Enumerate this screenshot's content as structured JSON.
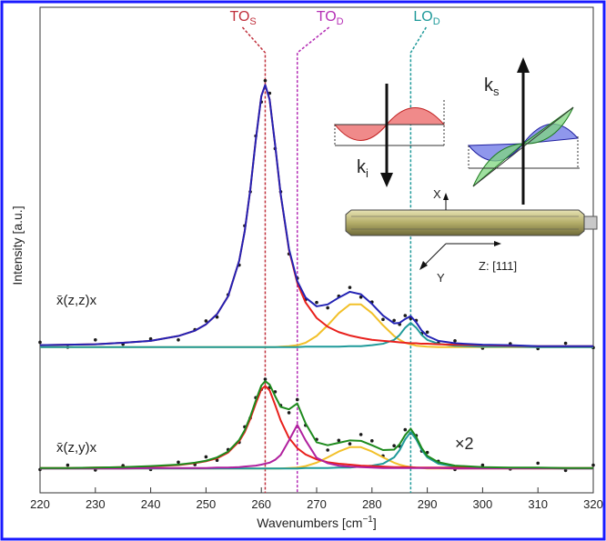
{
  "chart_data": {
    "type": "line",
    "x": [
      220,
      225,
      230,
      235,
      240,
      245,
      248,
      250,
      252,
      254,
      256,
      257,
      258,
      259,
      260,
      260.7,
      261.5,
      262.5,
      263.5,
      265,
      266.5,
      268,
      270,
      272,
      274,
      276,
      278,
      280,
      282,
      284,
      285,
      286,
      287,
      288,
      289,
      290,
      292,
      295,
      300,
      305,
      310,
      315,
      320
    ],
    "xlim": [
      220,
      320
    ],
    "xticks": [
      220,
      230,
      240,
      250,
      260,
      270,
      280,
      290,
      300,
      310,
      320
    ],
    "ylim": [
      0,
      100
    ],
    "xlabel": {
      "text": "Wavenumbers [cm",
      "sup": "−1",
      "end": "]"
    },
    "ylabel": "Intensity [a.u.]",
    "series": [
      {
        "style": "dots",
        "color": "#1a1a1a",
        "values": [
          31.0,
          30.0,
          31.5,
          30.6,
          31.7,
          31.5,
          33.6,
          35.4,
          36.2,
          40.8,
          46.9,
          55.0,
          62.0,
          73.5,
          80.5,
          84.9,
          82.3,
          70.9,
          62.0,
          49.2,
          44.2,
          39.8,
          39.2,
          38.1,
          40.5,
          42.3,
          40.3,
          39.3,
          35.7,
          35.5,
          34.7,
          36.5,
          35.9,
          35.5,
          32.8,
          33.1,
          30.9,
          31.3,
          29.8,
          30.7,
          29.7,
          30.8,
          29.9
        ]
      },
      {
        "style": "dots",
        "color": "#1a1a1a",
        "values": [
          4.8,
          5.7,
          4.7,
          5.6,
          4.8,
          6.3,
          5.8,
          7.4,
          6.7,
          8.9,
          10.4,
          13.6,
          15.4,
          19.6,
          21.3,
          23.4,
          21.7,
          20.8,
          18.0,
          16.5,
          19.2,
          13.9,
          11.0,
          8.8,
          10.8,
          10.1,
          12.0,
          10.7,
          7.6,
          9.7,
          9.6,
          13.0,
          12.3,
          11.8,
          8.6,
          8.3,
          6.5,
          4.8,
          5.7,
          4.9,
          6.1,
          4.6,
          5.7
        ]
      },
      {
        "style": "line",
        "color": "#f2c029",
        "values": [
          30,
          30,
          30,
          30,
          30,
          30,
          30,
          30,
          30,
          30,
          30,
          30,
          30,
          30,
          30,
          30,
          30,
          30,
          30.1,
          30.2,
          30.4,
          30.9,
          32.3,
          34.5,
          37,
          38.8,
          38.8,
          37,
          34.5,
          32.3,
          31.5,
          30.9,
          30.6,
          30.3,
          30.2,
          30.1,
          30,
          30,
          30,
          30,
          30,
          30,
          30
        ]
      },
      {
        "style": "line",
        "color": "#f2c029",
        "values": [
          5,
          5,
          5,
          5,
          5,
          5,
          5,
          5,
          5,
          5,
          5,
          5,
          5,
          5,
          5,
          5,
          5,
          5,
          5,
          5.1,
          5.2,
          5.5,
          6.2,
          7.3,
          8.5,
          9.4,
          9.4,
          8.5,
          7.3,
          6.2,
          5.8,
          5.5,
          5.3,
          5.2,
          5.1,
          5,
          5,
          5,
          5,
          5,
          5,
          5,
          5
        ]
      },
      {
        "style": "line",
        "color": "#1f9a9a",
        "values": [
          30,
          30,
          30,
          30,
          30,
          30,
          30,
          30,
          30,
          30,
          30,
          30,
          30,
          30,
          30,
          30,
          30,
          30,
          30,
          30,
          30,
          30.1,
          30.1,
          30.1,
          30.1,
          30.2,
          30.2,
          30.4,
          30.7,
          31.5,
          32.5,
          34,
          35,
          34,
          32.5,
          31.5,
          30.7,
          30.3,
          30.1,
          30.1,
          30,
          30,
          30
        ]
      },
      {
        "style": "line",
        "color": "#1f9a9a",
        "values": [
          5,
          5,
          5,
          5,
          5,
          5,
          5,
          5,
          5,
          5,
          5,
          5,
          5,
          5,
          5,
          5,
          5,
          5,
          5,
          5,
          5,
          5.1,
          5.1,
          5.1,
          5.2,
          5.2,
          5.4,
          5.6,
          6,
          7.3,
          8.8,
          11,
          12.5,
          11,
          8.8,
          7.3,
          6,
          5.4,
          5.2,
          5.1,
          5.1,
          5,
          5
        ]
      },
      {
        "style": "line",
        "color": "#e8201c",
        "values": [
          30.4,
          30.5,
          30.6,
          30.9,
          31.3,
          32.3,
          33.4,
          34.7,
          36.8,
          40.5,
          47.8,
          53.9,
          62.4,
          72.7,
          81.7,
          84,
          81,
          71.6,
          61.4,
          50,
          43.2,
          39.2,
          36,
          34.2,
          33.1,
          32.4,
          31.9,
          31.5,
          31.3,
          31.1,
          31,
          30.9,
          30.8,
          30.8,
          30.7,
          30.7,
          30.6,
          30.5,
          30.4,
          30.3,
          30.2,
          30.2,
          30.2
        ]
      },
      {
        "style": "line",
        "color": "#e8201c",
        "values": [
          5.1,
          5.1,
          5.2,
          5.3,
          5.4,
          5.7,
          6.1,
          6.5,
          7.1,
          8.3,
          10.6,
          12.5,
          15.2,
          18.4,
          21.3,
          22,
          21.1,
          18.1,
          14.9,
          11.3,
          9.2,
          7.9,
          6.9,
          6.3,
          6,
          5.8,
          5.6,
          5.5,
          5.4,
          5.3,
          5.3,
          5.3,
          5.3,
          5.2,
          5.2,
          5.2,
          5.2,
          5.2,
          5.1,
          5.1,
          5.1,
          5.1,
          5.1
        ]
      },
      {
        "style": "line",
        "color": "#b0209e",
        "values": [
          5,
          5,
          5,
          5,
          5.1,
          5.1,
          5.1,
          5.1,
          5.2,
          5.2,
          5.3,
          5.4,
          5.5,
          5.6,
          5.8,
          6,
          6.2,
          6.8,
          7.8,
          10.8,
          14,
          10.8,
          7.2,
          6.1,
          5.6,
          5.4,
          5.3,
          5.2,
          5.1,
          5.1,
          5.1,
          5.1,
          5.1,
          5.1,
          5.1,
          5.1,
          5.1,
          5,
          5,
          5,
          5,
          5,
          5
        ]
      },
      {
        "style": "line",
        "color": "#2323b4",
        "values": [
          30.4,
          30.5,
          30.6,
          30.9,
          31.3,
          32.3,
          33.4,
          34.7,
          36.8,
          40.5,
          47.8,
          53.9,
          62.4,
          72.7,
          81.7,
          84,
          81,
          71.6,
          61.5,
          50.2,
          43.6,
          40.2,
          38.4,
          38.8,
          40.2,
          41.4,
          40.9,
          38.9,
          36.5,
          34.9,
          35,
          35.8,
          36.4,
          35.1,
          33.4,
          32.3,
          31.3,
          30.8,
          30.5,
          30.4,
          30.2,
          30.2,
          30.2
        ]
      },
      {
        "style": "line",
        "color": "#1d8a1d",
        "values": [
          5.1,
          5.1,
          5.2,
          5.3,
          5.5,
          5.8,
          6.2,
          6.6,
          7.3,
          8.5,
          10.9,
          12.9,
          15.7,
          19,
          22.1,
          23,
          22.3,
          19.9,
          17.7,
          17.2,
          18.4,
          14.3,
          10.4,
          9.8,
          10.3,
          10.8,
          10.7,
          9.8,
          8.8,
          8.9,
          10,
          11.9,
          13.2,
          11.5,
          9.2,
          7.6,
          6.3,
          5.6,
          5.3,
          5.2,
          5.2,
          5.1,
          5.1
        ]
      }
    ],
    "markers": [
      {
        "x": 260.7,
        "label": "TO",
        "sub": "S",
        "color": "#c0303c"
      },
      {
        "x": 266.5,
        "label": "TO",
        "sub": "D",
        "color": "#b52fb5"
      },
      {
        "x": 287,
        "label": "LO",
        "sub": "D",
        "color": "#1f9a9a"
      }
    ],
    "annotations": [
      {
        "text": "x̄(z,z)x",
        "color": "#2323b4"
      },
      {
        "text": "x̄(z,y)x",
        "color": "#1d8a1d"
      },
      {
        "text": "×2",
        "color": "#1d8a1d"
      }
    ],
    "inset": {
      "incident": {
        "text": "k",
        "sub": "i"
      },
      "scattered": {
        "text": "k",
        "sub": "s"
      },
      "axes": [
        "X",
        "Y",
        "Z: [111]"
      ]
    }
  }
}
